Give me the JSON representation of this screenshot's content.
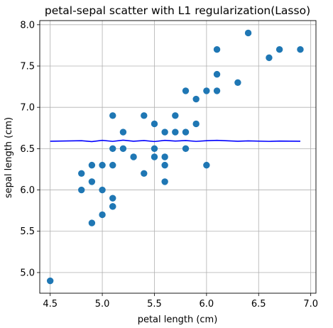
{
  "chart_data": {
    "type": "scatter",
    "title": "petal-sepal scatter with L1 regularization(Lasso)",
    "xlabel": "petal length (cm)",
    "ylabel": "sepal length (cm)",
    "xlim": [
      4.4,
      7.05
    ],
    "ylim": [
      4.75,
      8.05
    ],
    "xticks": [
      4.5,
      5.0,
      5.5,
      6.0,
      6.5,
      7.0
    ],
    "xtick_labels": [
      "4.5",
      "5.0",
      "5.5",
      "6.0",
      "6.5",
      "7.0"
    ],
    "yticks": [
      5.0,
      5.5,
      6.0,
      6.5,
      7.0,
      7.5,
      8.0
    ],
    "ytick_labels": [
      "5.0",
      "5.5",
      "6.0",
      "6.5",
      "7.0",
      "7.5",
      "8.0"
    ],
    "grid": true,
    "marker_color": "#1f77b4",
    "line_color": "#0000ff",
    "points": [
      [
        4.5,
        4.9
      ],
      [
        4.8,
        6.2
      ],
      [
        4.8,
        6.0
      ],
      [
        4.9,
        6.3
      ],
      [
        4.9,
        6.1
      ],
      [
        4.9,
        5.6
      ],
      [
        5.0,
        6.3
      ],
      [
        5.0,
        6.0
      ],
      [
        5.0,
        5.7
      ],
      [
        5.1,
        6.9
      ],
      [
        5.1,
        6.5
      ],
      [
        5.1,
        6.3
      ],
      [
        5.1,
        5.9
      ],
      [
        5.1,
        5.8
      ],
      [
        5.1,
        5.8
      ],
      [
        5.2,
        6.7
      ],
      [
        5.2,
        6.5
      ],
      [
        5.3,
        6.4
      ],
      [
        5.4,
        6.9
      ],
      [
        5.4,
        6.2
      ],
      [
        5.5,
        6.8
      ],
      [
        5.5,
        6.5
      ],
      [
        5.5,
        6.4
      ],
      [
        5.6,
        6.7
      ],
      [
        5.6,
        6.4
      ],
      [
        5.6,
        6.3
      ],
      [
        5.6,
        6.1
      ],
      [
        5.7,
        6.9
      ],
      [
        5.7,
        6.7
      ],
      [
        5.8,
        7.2
      ],
      [
        5.8,
        6.7
      ],
      [
        5.8,
        6.5
      ],
      [
        5.9,
        7.1
      ],
      [
        5.9,
        6.8
      ],
      [
        6.0,
        7.2
      ],
      [
        6.0,
        6.3
      ],
      [
        6.1,
        7.7
      ],
      [
        6.1,
        7.4
      ],
      [
        6.1,
        7.2
      ],
      [
        6.3,
        7.3
      ],
      [
        6.4,
        7.9
      ],
      [
        6.6,
        7.6
      ],
      [
        6.7,
        7.7
      ],
      [
        6.9,
        7.7
      ]
    ],
    "fit_line": {
      "x": [
        4.5,
        4.8,
        4.9,
        5.0,
        5.1,
        5.2,
        5.3,
        5.4,
        5.5,
        5.6,
        5.7,
        5.8,
        5.9,
        6.0,
        6.1,
        6.3,
        6.4,
        6.6,
        6.7,
        6.9
      ],
      "y": [
        6.59,
        6.596,
        6.585,
        6.6,
        6.588,
        6.602,
        6.59,
        6.598,
        6.586,
        6.6,
        6.592,
        6.598,
        6.588,
        6.596,
        6.6,
        6.59,
        6.594,
        6.588,
        6.592,
        6.59
      ]
    }
  }
}
